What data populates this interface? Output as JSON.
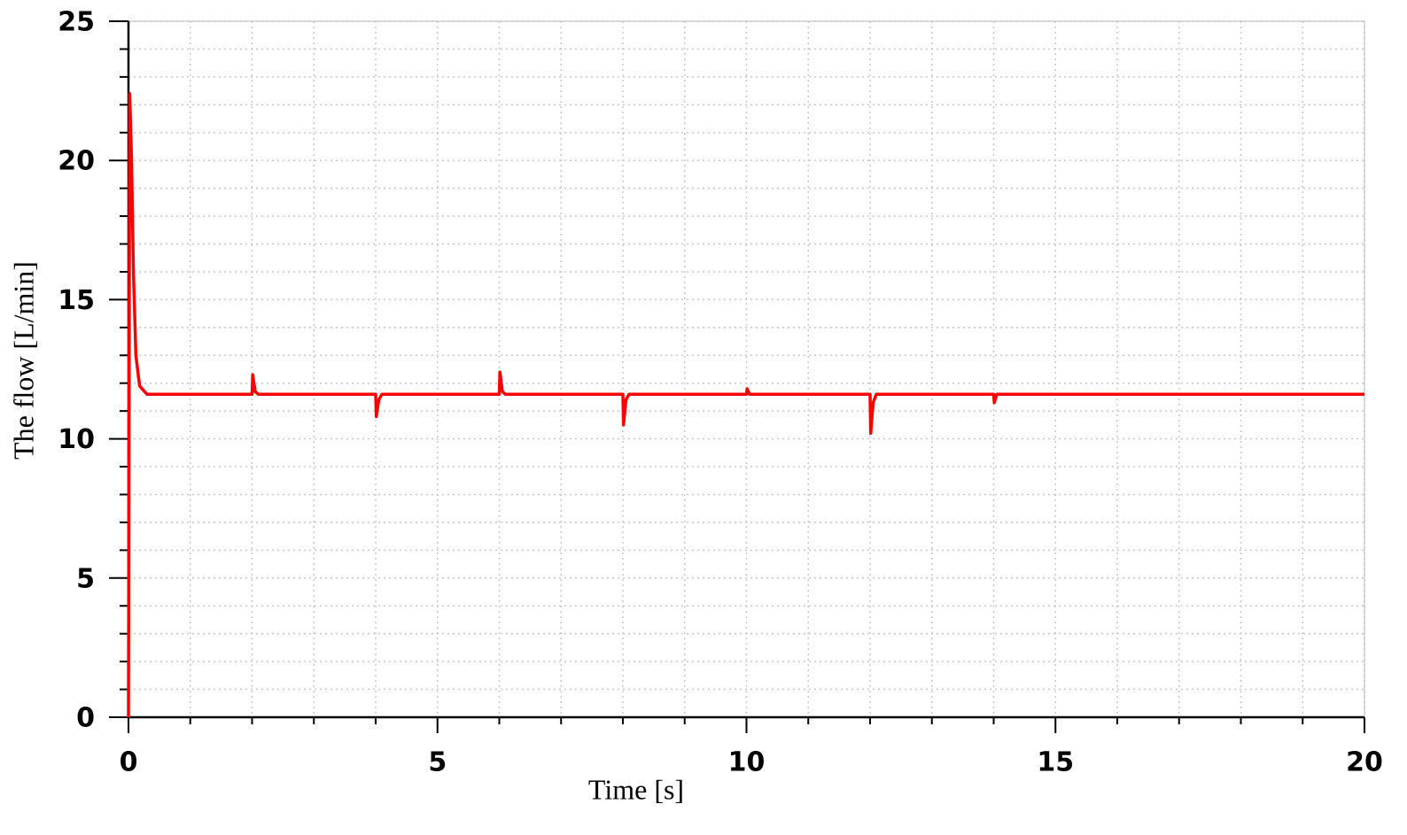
{
  "chart_data": {
    "type": "line",
    "x_label": "Time [s]",
    "y_label": "The flow  [L/min]",
    "x": [
      0,
      0.02,
      0.05,
      0.08,
      0.12,
      0.18,
      0.3,
      2.0,
      2.01,
      2.05,
      2.1,
      4.0,
      4.01,
      4.05,
      4.1,
      6.0,
      6.01,
      6.05,
      6.1,
      8.0,
      8.01,
      8.05,
      8.1,
      10.0,
      10.01,
      10.05,
      12.0,
      12.01,
      12.05,
      12.1,
      14.0,
      14.01,
      14.05,
      20
    ],
    "values": [
      0,
      22.4,
      20,
      16,
      13,
      11.9,
      11.6,
      11.6,
      12.3,
      11.7,
      11.6,
      11.6,
      10.8,
      11.4,
      11.6,
      11.6,
      12.4,
      11.7,
      11.6,
      11.6,
      10.5,
      11.4,
      11.6,
      11.6,
      11.8,
      11.6,
      11.6,
      10.2,
      11.3,
      11.6,
      11.6,
      11.3,
      11.6,
      11.6
    ],
    "color": "#ff0000",
    "xlim": [
      0,
      20
    ],
    "ylim": [
      0,
      25
    ],
    "xticks": [
      0,
      5,
      10,
      15,
      20
    ],
    "yticks": [
      0,
      5,
      10,
      15,
      20,
      25
    ],
    "minor_xticks": [
      1,
      2,
      3,
      4,
      6,
      7,
      8,
      9,
      11,
      12,
      13,
      14,
      16,
      17,
      18,
      19
    ],
    "minor_yticks": [
      1,
      2,
      3,
      4,
      6,
      7,
      8,
      9,
      11,
      12,
      13,
      14,
      16,
      17,
      18,
      19,
      21,
      22,
      23,
      24
    ],
    "grid": true
  }
}
